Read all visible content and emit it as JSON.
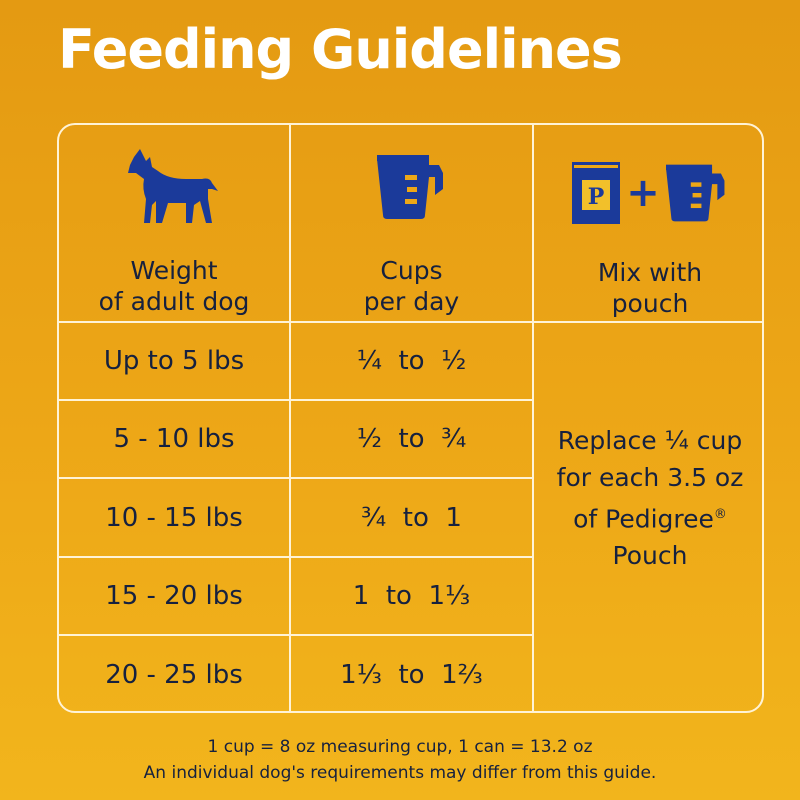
{
  "title": "Feeding Guidelines",
  "headers": {
    "weight": "Weight\nof adult dog",
    "cups": "Cups\nper day",
    "mix": "Mix with\npouch"
  },
  "icons": {
    "weight": "dog-icon",
    "cups": "measuring-cup-icon",
    "mix": "pouch-plus-cup-icon",
    "pouch_letter": "P",
    "plus": "+"
  },
  "rows": [
    {
      "weight": "Up to 5 lbs",
      "cups": "¼  to  ½"
    },
    {
      "weight": "5 - 10 lbs",
      "cups": "½  to  ¾"
    },
    {
      "weight": "10 - 15 lbs",
      "cups": "¾  to  1"
    },
    {
      "weight": "15 - 20 lbs",
      "cups": "1  to  1⅓"
    },
    {
      "weight": "20 - 25 lbs",
      "cups": "1⅓  to  1⅔"
    }
  ],
  "mix_text": "Replace ¼ cup\nfor each 3.5 oz\nof Pedigree",
  "mix_registered": "®",
  "mix_text_end": "Pouch",
  "footer": {
    "line1": "1 cup = 8 oz measuring cup, 1 can = 13.2 oz",
    "line2": "An individual dog's requirements may differ from this guide."
  },
  "colors": {
    "icon_blue": "#1b3a9a",
    "text_navy": "#16213f",
    "border": "#fff3d6"
  }
}
